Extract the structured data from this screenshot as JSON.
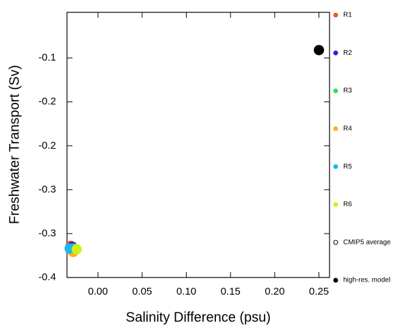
{
  "chart_data": {
    "type": "scatter",
    "xlabel": "Salinity Difference (psu)",
    "ylabel": "Freshwater Transport (Sv)",
    "xlim": [
      -0.035,
      0.262
    ],
    "ylim": [
      -0.35,
      -0.048
    ],
    "xticks": [
      {
        "value": 0,
        "label": "0.00"
      },
      {
        "value": 0.05,
        "label": "0.05"
      },
      {
        "value": 0.1,
        "label": "0.10"
      },
      {
        "value": 0.15,
        "label": "0.15"
      },
      {
        "value": 0.2,
        "label": "0.20"
      },
      {
        "value": 0.25,
        "label": "0.25"
      }
    ],
    "yticks": [
      -0.1,
      {
        "value": -0.15,
        "label": "-0.2"
      },
      -0.2,
      {
        "value": -0.25,
        "label": "-0.3"
      },
      -0.3,
      {
        "value": -0.35,
        "label": "-0.4"
      }
    ],
    "series": [
      {
        "name": "R1",
        "color": "#f05a28",
        "marker": "filled",
        "x": [
          -0.031
        ],
        "y": [
          -0.314
        ]
      },
      {
        "name": "R2",
        "color": "#4b0fd8",
        "marker": "filled",
        "x": [
          -0.029
        ],
        "y": [
          -0.315
        ]
      },
      {
        "name": "R3",
        "color": "#2ee05a",
        "marker": "filled",
        "x": [
          -0.027
        ],
        "y": [
          -0.317
        ]
      },
      {
        "name": "R4",
        "color": "#ffb31a",
        "marker": "filled",
        "x": [
          -0.028
        ],
        "y": [
          -0.321
        ]
      },
      {
        "name": "R5",
        "color": "#1ab8f0",
        "marker": "filled",
        "x": [
          -0.032
        ],
        "y": [
          -0.317
        ]
      },
      {
        "name": "R6",
        "color": "#d2ee1a",
        "marker": "filled",
        "x": [
          -0.024
        ],
        "y": [
          -0.318
        ]
      },
      {
        "name": "CMIP5 average",
        "color": "#000000",
        "marker": "open",
        "x": [],
        "y": []
      },
      {
        "name": "high-res. model",
        "color": "#000000",
        "marker": "filled",
        "x": [
          0.25
        ],
        "y": [
          -0.091
        ]
      }
    ]
  }
}
